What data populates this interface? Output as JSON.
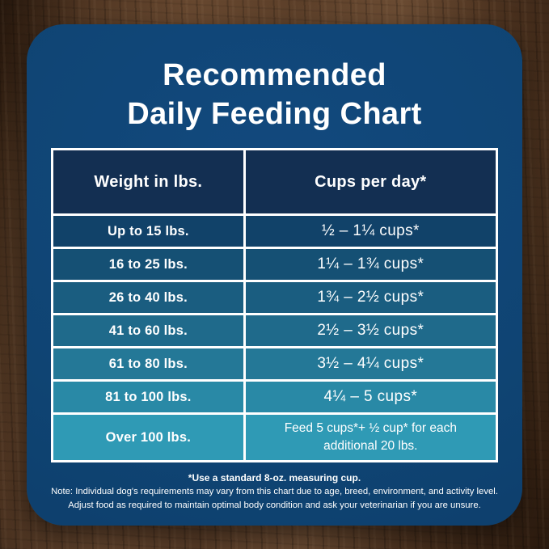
{
  "title": {
    "line1": "Recommended",
    "line2": "Daily Feeding Chart"
  },
  "table": {
    "header": {
      "weight": "Weight in lbs.",
      "cups": "Cups per day*",
      "bg": "#132f52"
    },
    "rows": [
      {
        "weight": "Up to 15 lbs.",
        "cups": "½ – 1¼ cups*",
        "bg": "#114269"
      },
      {
        "weight": "16 to 25 lbs.",
        "cups": "1¼ – 1¾ cups*",
        "bg": "#155074"
      },
      {
        "weight": "26 to 40 lbs.",
        "cups": "1¾ – 2½ cups*",
        "bg": "#1a5d80"
      },
      {
        "weight": "41 to 60 lbs.",
        "cups": "2½ – 3½ cups*",
        "bg": "#1f6a8b"
      },
      {
        "weight": "61 to 80 lbs.",
        "cups": "3½ – 4¼ cups*",
        "bg": "#247897"
      },
      {
        "weight": "81 to 100 lbs.",
        "cups": "4¼ – 5 cups*",
        "bg": "#2989a6"
      },
      {
        "weight": "Over 100 lbs.",
        "cups": "Feed 5 cups*+ ½ cup* for each additional 20 lbs.",
        "bg": "#2f9ab5"
      }
    ]
  },
  "footnotes": {
    "line1": "*Use a standard 8-oz. measuring cup.",
    "line2": "Note: Individual dog's requirements may vary from this chart due to age, breed, environment, and activity level.",
    "line3": "Adjust food as required to maintain optimal body condition and ask your veterinarian if you are unsure."
  },
  "colors": {
    "card_bg": "#0f4473",
    "header_bg": "#132f52",
    "table_border": "#ffffff",
    "text": "#ffffff"
  },
  "chart_data": {
    "type": "table",
    "title": "Recommended Daily Feeding Chart",
    "columns": [
      "Weight in lbs.",
      "Cups per day*"
    ],
    "rows": [
      [
        "Up to 15 lbs.",
        "½ – 1¼ cups*"
      ],
      [
        "16 to 25 lbs.",
        "1¼ – 1¾ cups*"
      ],
      [
        "26 to 40 lbs.",
        "1¾ – 2½ cups*"
      ],
      [
        "41 to 60 lbs.",
        "2½ – 3½ cups*"
      ],
      [
        "61 to 80 lbs.",
        "3½ – 4¼ cups*"
      ],
      [
        "81 to 100 lbs.",
        "4¼ – 5 cups*"
      ],
      [
        "Over 100 lbs.",
        "Feed 5 cups*+ ½ cup* for each additional 20 lbs."
      ]
    ],
    "cups_per_day_numeric": [
      {
        "weight_min": 0,
        "weight_max": 15,
        "cups_min": 0.5,
        "cups_max": 1.25
      },
      {
        "weight_min": 16,
        "weight_max": 25,
        "cups_min": 1.25,
        "cups_max": 1.75
      },
      {
        "weight_min": 26,
        "weight_max": 40,
        "cups_min": 1.75,
        "cups_max": 2.5
      },
      {
        "weight_min": 41,
        "weight_max": 60,
        "cups_min": 2.5,
        "cups_max": 3.5
      },
      {
        "weight_min": 61,
        "weight_max": 80,
        "cups_min": 3.5,
        "cups_max": 4.25
      },
      {
        "weight_min": 81,
        "weight_max": 100,
        "cups_min": 4.25,
        "cups_max": 5
      },
      {
        "weight_min": 100,
        "weight_max": null,
        "cups_rule": "5 cups + 0.5 cup per additional 20 lbs"
      }
    ],
    "footnote": "*Use a standard 8-oz. measuring cup."
  }
}
